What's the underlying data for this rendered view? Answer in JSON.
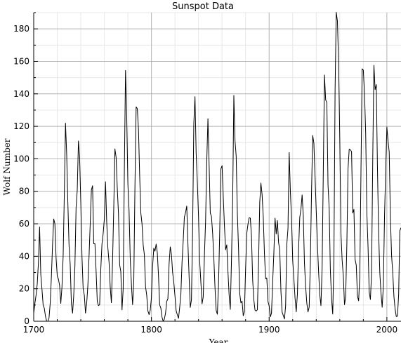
{
  "chart_data": {
    "type": "line",
    "title": "Sunspot Data",
    "xlabel": "Year",
    "ylabel": "Wolf Number",
    "xlim": [
      1700,
      2012
    ],
    "ylim": [
      0,
      190
    ],
    "x_ticks": [
      1700,
      1800,
      1900,
      2000
    ],
    "y_ticks": [
      0,
      20,
      40,
      60,
      80,
      100,
      120,
      140,
      160,
      180
    ],
    "x_tick_labels": [
      "1700",
      "1800",
      "1900",
      "2000"
    ],
    "y_tick_labels": [
      "0",
      "20",
      "40",
      "60",
      "80",
      "100",
      "120",
      "140",
      "160",
      "180"
    ],
    "grid": {
      "major": true,
      "minor": true
    },
    "series": [
      {
        "x_start": 1700,
        "x_step": 1,
        "values": [
          5,
          11,
          16,
          23,
          36,
          58,
          29,
          20,
          10,
          8,
          3,
          0,
          0,
          2,
          11,
          27,
          47,
          63,
          60,
          39,
          28,
          26,
          22,
          11,
          21,
          40,
          78,
          122,
          103,
          73,
          47,
          35,
          11,
          5,
          16,
          34,
          70,
          81,
          111,
          101,
          73,
          40,
          20,
          16,
          5,
          11,
          22,
          40,
          60,
          80.9,
          83.4,
          47.7,
          47.8,
          30.7,
          12.2,
          9.6,
          10.2,
          32.4,
          47.6,
          54,
          62.9,
          85.9,
          61.2,
          45.1,
          36.4,
          20.9,
          11.4,
          37.8,
          69.8,
          106.1,
          100.8,
          81.6,
          66.5,
          34.8,
          30.6,
          7,
          19.8,
          92.5,
          154.4,
          125.9,
          84.8,
          68.1,
          38.5,
          22.8,
          10.2,
          24.1,
          82.9,
          132,
          130.9,
          118.1,
          89.9,
          66.6,
          60,
          46.9,
          41,
          21.3,
          16,
          6.4,
          4.1,
          6.8,
          14.5,
          34,
          45,
          43.1,
          47.5,
          42.2,
          28.1,
          10.1,
          8.1,
          2.5,
          0,
          1.4,
          5,
          12.2,
          13.9,
          35.4,
          45.8,
          41.1,
          30.1,
          23.9,
          15.6,
          6.6,
          4,
          1.8,
          8.5,
          16.6,
          36.3,
          49.6,
          64.2,
          67,
          70.9,
          47.8,
          27.5,
          8.5,
          13.2,
          56.9,
          121.5,
          138.3,
          103.2,
          85.7,
          64.6,
          36.7,
          24.2,
          10.7,
          15,
          40.1,
          61.5,
          98.5,
          124.7,
          96.3,
          66.6,
          64.5,
          54.1,
          39,
          20.6,
          6.7,
          4.3,
          22.7,
          54.8,
          93.8,
          95.8,
          77.2,
          59.1,
          44,
          47,
          30.5,
          16.3,
          7.3,
          37.6,
          74,
          139,
          111.2,
          101.6,
          66.2,
          44.7,
          17,
          11.3,
          12.4,
          3.4,
          6,
          32.3,
          54.3,
          59.7,
          63.7,
          63.5,
          52.2,
          25.4,
          13.1,
          6.8,
          6.3,
          7.1,
          35.6,
          73,
          85.1,
          78,
          64,
          41.8,
          26.2,
          26.7,
          12.1,
          9.5,
          2.7,
          5,
          24.4,
          42,
          63.5,
          53.8,
          62,
          48.5,
          43.9,
          18.6,
          5.7,
          3.6,
          1.4,
          9.6,
          47.4,
          57.1,
          103.9,
          80.6,
          63.6,
          37.6,
          26.1,
          14.2,
          5.8,
          16.7,
          44.3,
          63.9,
          69,
          77.8,
          64.9,
          35.7,
          21.2,
          11.1,
          5.7,
          8.7,
          36.1,
          79.7,
          114.4,
          109.6,
          88.8,
          67.8,
          47.5,
          30.6,
          16.3,
          9.6,
          33.2,
          92.6,
          151.6,
          136.3,
          134.7,
          83.9,
          69.4,
          31.5,
          13.9,
          4.4,
          38,
          141.7,
          190.2,
          184.8,
          159,
          112.3,
          53.9,
          37.5,
          27.9,
          10.2,
          15.1,
          47,
          93.8,
          105.9,
          105.5,
          104.5,
          66.6,
          68.9,
          38,
          34.5,
          15.5,
          12.6,
          27.5,
          92.5,
          155.4,
          154.6,
          140.4,
          115.9,
          66.6,
          45.9,
          17.9,
          13.4,
          29.2,
          100.2,
          157.6,
          142.6,
          145.7,
          94.3,
          54.6,
          29.9,
          17.5,
          8.6,
          21.5,
          64.3,
          93.3,
          119.6,
          111,
          104,
          63.7,
          40.4,
          29.8,
          15.2,
          7.5,
          2.9,
          3.1,
          16.5,
          55.7,
          57.6
        ]
      }
    ]
  }
}
